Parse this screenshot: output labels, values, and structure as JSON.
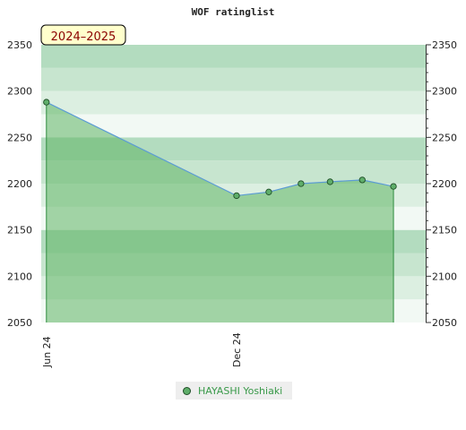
{
  "chart_data": {
    "type": "area",
    "title": "WOF ratinglist",
    "badge": "2024–2025",
    "x_axis": {
      "labels": [
        "Jun 24",
        "Dec 24"
      ],
      "range": [
        "2024-05-27",
        "2025-06-01"
      ]
    },
    "y_axis": {
      "min": 2050,
      "max": 2350,
      "ticks": [
        2050,
        2100,
        2150,
        2200,
        2250,
        2300,
        2350
      ]
    },
    "series": [
      {
        "name": "HAYASHI Yoshiaki",
        "points": [
          {
            "x": "2024-06-01",
            "y": 2288
          },
          {
            "x": "2024-12-01",
            "y": 2187
          },
          {
            "x": "2025-01-01",
            "y": 2191
          },
          {
            "x": "2025-02-01",
            "y": 2200
          },
          {
            "x": "2025-03-01",
            "y": 2202
          },
          {
            "x": "2025-04-01",
            "y": 2204
          },
          {
            "x": "2025-05-01",
            "y": 2197
          }
        ]
      }
    ],
    "legend_position": "bottom-center",
    "colors": {
      "area_fill": "#5fb565",
      "line": "#5b9bd5",
      "marker": "#5fae6a",
      "area_edge": "#2e8b3e"
    }
  }
}
